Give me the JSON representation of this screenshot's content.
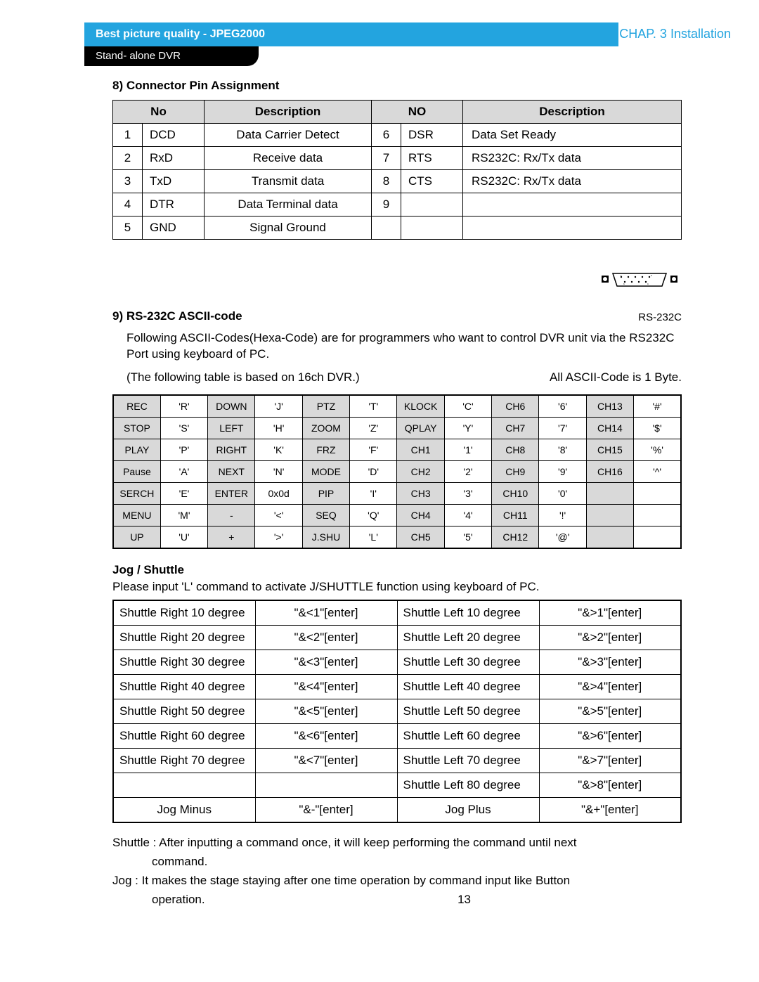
{
  "header": {
    "blue_bar_prefix": "Best picture quality - ",
    "blue_bar_em": "JPEG2000",
    "black_pill": "Stand- alone DVR",
    "chapter": "CHAP. 3   Installation"
  },
  "section8": {
    "title": "8) Connector Pin Assignment",
    "headers": [
      "No",
      "",
      "Description",
      "NO",
      "",
      "Description"
    ],
    "rows": [
      [
        "1",
        "DCD",
        "Data Carrier Detect",
        "6",
        "DSR",
        "Data Set Ready"
      ],
      [
        "2",
        "RxD",
        "Receive data",
        "7",
        "RTS",
        "RS232C: Rx/Tx data"
      ],
      [
        "3",
        "TxD",
        "Transmit data",
        "8",
        "CTS",
        "RS232C: Rx/Tx data"
      ],
      [
        "4",
        "DTR",
        "Data Terminal data",
        "9",
        "",
        ""
      ],
      [
        "5",
        "GND",
        "Signal Ground",
        "",
        "",
        ""
      ]
    ]
  },
  "section9": {
    "title": "9) RS-232C ASCII-code",
    "connector_label": "RS-232C",
    "para1": "Following ASCII-Codes(Hexa-Code) are for programmers who want to control DVR unit via the RS232C Port using keyboard of PC.",
    "para2_left": "(The following table is based on 16ch DVR.)",
    "para2_right": "All ASCII-Code is 1 Byte.",
    "ascii_rows": [
      [
        "REC",
        "'R'",
        "DOWN",
        "'J'",
        "PTZ",
        "'T'",
        "KLOCK",
        "'C'",
        "CH6",
        "'6'",
        "CH13",
        "'#'"
      ],
      [
        "STOP",
        "'S'",
        "LEFT",
        "'H'",
        "ZOOM",
        "'Z'",
        "QPLAY",
        "'Y'",
        "CH7",
        "'7'",
        "CH14",
        "'$'"
      ],
      [
        "PLAY",
        "'P'",
        "RIGHT",
        "'K'",
        "FRZ",
        "'F'",
        "CH1",
        "'1'",
        "CH8",
        "'8'",
        "CH15",
        "'%'"
      ],
      [
        "Pause",
        "'A'",
        "NEXT",
        "'N'",
        "MODE",
        "'D'",
        "CH2",
        "'2'",
        "CH9",
        "'9'",
        "CH16",
        "'^'"
      ],
      [
        "SERCH",
        "'E'",
        "ENTER",
        "0x0d",
        "PIP",
        "'I'",
        "CH3",
        "'3'",
        "CH10",
        "'0'",
        "",
        ""
      ],
      [
        "MENU",
        "'M'",
        "-",
        "'<'",
        "SEQ",
        "'Q'",
        "CH4",
        "'4'",
        "CH11",
        "'!'",
        "",
        ""
      ],
      [
        "UP",
        "'U'",
        "+",
        "'>'",
        "J.SHU",
        "'L'",
        "CH5",
        "'5'",
        "CH12",
        "'@'",
        "",
        ""
      ]
    ],
    "ascii_header_cols": [
      0,
      2,
      4,
      6,
      8,
      10
    ]
  },
  "jog": {
    "title": "Jog / Shuttle",
    "note": "Please input 'L' command to activate J/SHUTTLE function using keyboard of PC.",
    "rows": [
      [
        "Shuttle Right 10 degree",
        "\"&<1\"[enter]",
        "Shuttle Left 10 degree",
        "\"&>1\"[enter]"
      ],
      [
        "Shuttle Right 20 degree",
        "\"&<2\"[enter]",
        "Shuttle Left 20 degree",
        "\"&>2\"[enter]"
      ],
      [
        "Shuttle Right 30 degree",
        "\"&<3\"[enter]",
        "Shuttle Left 30 degree",
        "\"&>3\"[enter]"
      ],
      [
        "Shuttle Right 40 degree",
        "\"&<4\"[enter]",
        "Shuttle Left 40 degree",
        "\"&>4\"[enter]"
      ],
      [
        "Shuttle Right 50 degree",
        "\"&<5\"[enter]",
        "Shuttle Left 50 degree",
        "\"&>5\"[enter]"
      ],
      [
        "Shuttle Right 60 degree",
        "\"&<6\"[enter]",
        "Shuttle Left 60 degree",
        "\"&>6\"[enter]"
      ],
      [
        "Shuttle Right 70 degree",
        "\"&<7\"[enter]",
        "Shuttle Left 70 degree",
        "\"&>7\"[enter]"
      ],
      [
        "",
        "",
        "Shuttle Left 80 degree",
        "\"&>8\"[enter]"
      ],
      [
        "Jog Minus",
        "\"&-\"[enter]",
        "Jog Plus",
        "\"&+\"[enter]"
      ]
    ],
    "center_rows": [
      8
    ],
    "center_col0_row8": true
  },
  "notes": {
    "shuttle_label": "Shuttle : ",
    "shuttle_text": "After inputting a command once, it will keep performing the command  until next",
    "shuttle_cont": "command.",
    "jog_label": "Jog : ",
    "jog_text": "It makes the stage staying after one time operation by command input like Button",
    "jog_cont": "operation."
  },
  "page_number": "13"
}
